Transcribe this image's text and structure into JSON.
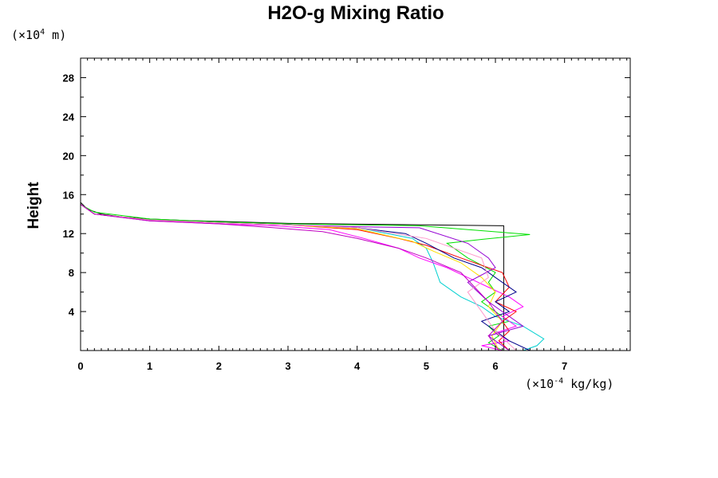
{
  "chart_data": {
    "type": "line",
    "title": "H2O-g Mixing Ratio",
    "ylabel": "Height",
    "y_unit": {
      "prefix": "(×10",
      "exponent": "4",
      "suffix": " m)"
    },
    "x_unit": {
      "prefix": "(×10",
      "exponent": "-4",
      "suffix": " kg/kg)"
    },
    "xlim": [
      0,
      7.95
    ],
    "ylim": [
      0,
      30
    ],
    "x_ticks": [
      "0",
      "1",
      "2",
      "3",
      "4",
      "5",
      "6",
      "7"
    ],
    "y_ticks": [
      "4",
      "8",
      "12",
      "16",
      "20",
      "24",
      "28"
    ],
    "grid": false,
    "series": [
      {
        "color": "#000000",
        "x": [
          0,
          0.1,
          0.3,
          0.6,
          1.0,
          1.5,
          2.0,
          3.0,
          6.12,
          6.12
        ],
        "y": [
          15.2,
          14.5,
          14.0,
          13.7,
          13.5,
          13.35,
          13.25,
          13.05,
          12.8,
          0
        ]
      },
      {
        "color": "#00e000",
        "x": [
          0,
          0.2,
          1.0,
          2.0,
          3.0,
          4.0,
          4.9,
          6.5,
          5.8,
          5.3,
          5.6,
          6.0,
          5.9,
          6.0,
          5.8,
          6.0,
          6.2,
          5.9,
          6.05,
          5.9,
          6.1
        ],
        "y": [
          15.0,
          14.2,
          13.5,
          13.2,
          13.0,
          12.9,
          12.8,
          11.9,
          11.4,
          11.0,
          9.5,
          8.0,
          7.0,
          6.0,
          5.0,
          4.0,
          3.0,
          2.5,
          1.5,
          0.8,
          0
        ]
      },
      {
        "color": "#00d0d0",
        "x": [
          0,
          0.2,
          1.0,
          2.0,
          3.0,
          4.0,
          4.8,
          5.0,
          5.1,
          5.2,
          5.5,
          5.8,
          6.0,
          6.4,
          6.7,
          6.6,
          6.4
        ],
        "y": [
          15.0,
          14.0,
          13.3,
          13.1,
          12.9,
          12.6,
          11.5,
          10.5,
          9.0,
          7.0,
          5.5,
          4.5,
          3.5,
          2.5,
          1.2,
          0.5,
          0
        ]
      },
      {
        "color": "#ff00ff",
        "x": [
          0,
          0.2,
          1.0,
          2.0,
          2.8,
          3.6,
          4.1,
          4.6,
          4.9,
          5.3,
          5.6,
          5.9,
          6.2,
          6.4,
          6.1,
          6.3,
          6.0,
          6.2,
          5.8,
          6.1
        ],
        "y": [
          15.0,
          14.0,
          13.3,
          13.0,
          12.8,
          12.4,
          11.5,
          10.5,
          9.5,
          8.5,
          7.5,
          6.5,
          5.5,
          4.5,
          3.5,
          2.5,
          1.8,
          1.0,
          0.5,
          0
        ]
      },
      {
        "color": "#ff0000",
        "x": [
          0,
          0.2,
          1.0,
          2.0,
          3.0,
          4.0,
          4.6,
          5.0,
          5.5,
          6.1,
          6.2,
          6.0,
          6.3,
          6.1,
          6.2,
          6.05,
          6.2
        ],
        "y": [
          15.0,
          14.0,
          13.4,
          13.1,
          12.9,
          12.4,
          11.5,
          10.8,
          9.5,
          8.0,
          6.5,
          5.0,
          4.0,
          3.0,
          2.0,
          1.0,
          0
        ]
      },
      {
        "color": "#ffe000",
        "x": [
          0,
          0.2,
          1.0,
          2.0,
          3.0,
          4.0,
          4.8,
          5.1,
          5.5,
          5.8,
          6.0,
          5.9,
          6.1,
          5.95,
          6.05
        ],
        "y": [
          15.0,
          14.0,
          13.4,
          13.1,
          12.9,
          12.5,
          11.2,
          10.2,
          9.0,
          7.5,
          6.0,
          4.5,
          3.0,
          1.5,
          0
        ]
      },
      {
        "color": "#00008b",
        "x": [
          0,
          0.2,
          1.0,
          2.0,
          3.0,
          4.0,
          4.7,
          5.0,
          5.4,
          5.8,
          6.0,
          6.3,
          6.0,
          6.2,
          5.8,
          6.0,
          6.2,
          6.5
        ],
        "y": [
          15.0,
          14.0,
          13.4,
          13.1,
          12.9,
          12.6,
          12.0,
          11.0,
          9.5,
          8.5,
          7.5,
          6.0,
          5.0,
          4.0,
          3.0,
          2.0,
          1.0,
          0
        ]
      },
      {
        "color": "#9400d3",
        "x": [
          0,
          0.2,
          1.0,
          2.0,
          3.0,
          4.0,
          4.9,
          5.6,
          5.9,
          6.0,
          5.6,
          5.9,
          6.1,
          6.4,
          5.9,
          6.2
        ],
        "y": [
          15.0,
          14.0,
          13.4,
          13.1,
          12.9,
          12.7,
          12.6,
          11.0,
          9.5,
          8.5,
          7.0,
          5.0,
          4.0,
          2.5,
          1.5,
          0
        ]
      },
      {
        "color": "#ff99cc",
        "x": [
          0,
          0.2,
          1.0,
          2.0,
          3.0,
          4.0,
          5.0,
          5.8,
          5.9,
          5.6,
          5.8,
          6.0,
          6.3
        ],
        "y": [
          15.0,
          14.0,
          13.4,
          13.1,
          12.9,
          12.6,
          11.5,
          9.5,
          7.5,
          6.0,
          4.0,
          2.0,
          0
        ]
      },
      {
        "color": "#c000c0",
        "x": [
          0,
          0.2,
          1.0,
          2.0,
          2.8,
          3.5,
          4.0,
          4.6,
          5.0,
          5.5,
          5.7,
          5.9,
          6.1,
          5.9,
          6.05
        ],
        "y": [
          15.0,
          14.0,
          13.3,
          13.0,
          12.6,
          12.2,
          11.5,
          10.5,
          9.5,
          8.0,
          6.5,
          5.0,
          3.0,
          1.5,
          0
        ]
      }
    ]
  }
}
